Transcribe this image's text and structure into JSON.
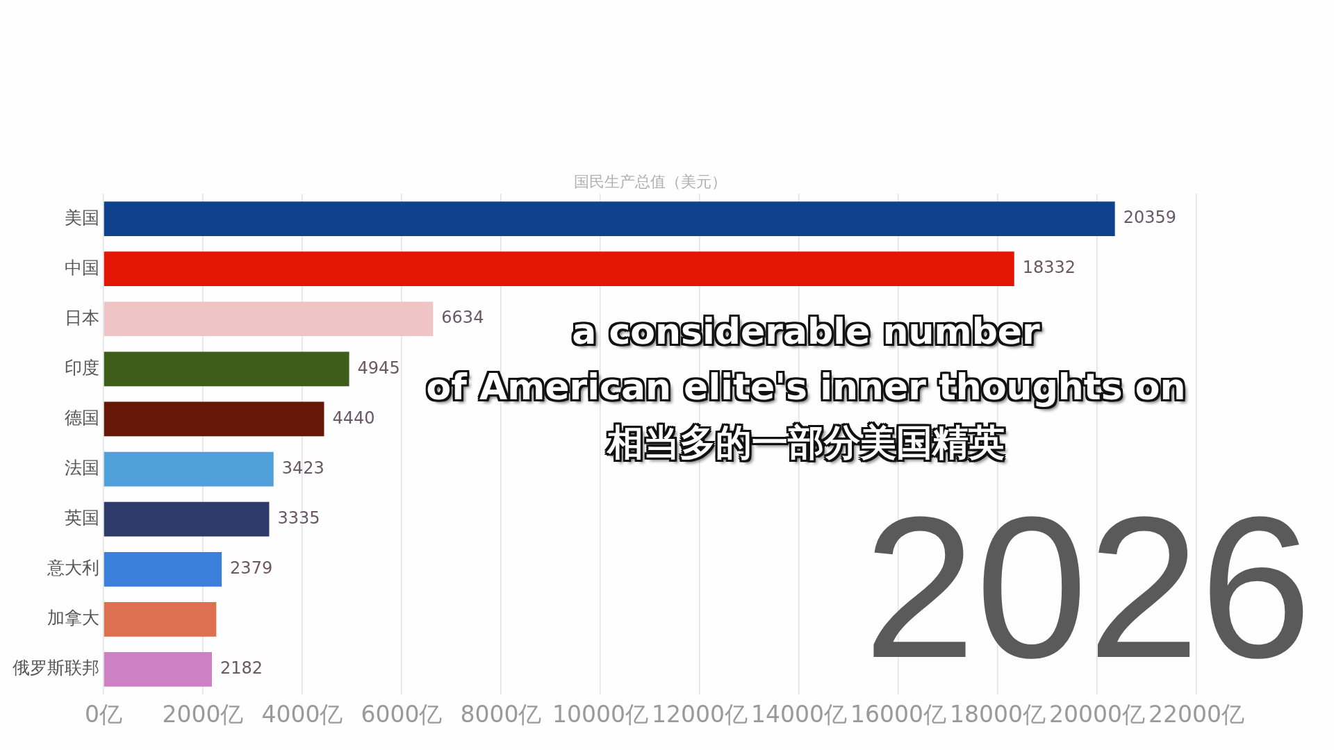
{
  "chart_data": {
    "type": "bar",
    "orientation": "horizontal",
    "title": "国民生产总值（美元）",
    "categories": [
      "美国",
      "中国",
      "日本",
      "印度",
      "德国",
      "法国",
      "英国",
      "意大利",
      "加拿大",
      "俄罗斯联邦"
    ],
    "values": [
      20359,
      18332,
      6634,
      4945,
      4440,
      3423,
      3335,
      2379,
      2270,
      2182
    ],
    "colors": [
      "#0f418c",
      "#e21602",
      "#eec4c4",
      "#3e5c1a",
      "#661808",
      "#50a0dc",
      "#2e3a6a",
      "#3a80da",
      "#dc7050",
      "#ce80c4"
    ],
    "value_labels": [
      "20359",
      "18332",
      "6634",
      "4945",
      "4440",
      "3423",
      "3335",
      "2379",
      null,
      "2182"
    ],
    "xlim": [
      0,
      22000
    ],
    "xticks": [
      {
        "value": 0,
        "label": "0亿"
      },
      {
        "value": 2000,
        "label": "2000亿"
      },
      {
        "value": 4000,
        "label": "4000亿"
      },
      {
        "value": 6000,
        "label": "6000亿"
      },
      {
        "value": 8000,
        "label": "8000亿"
      },
      {
        "value": 10000,
        "label": "10000亿"
      },
      {
        "value": 12000,
        "label": "12000亿"
      },
      {
        "value": 14000,
        "label": "14000亿"
      },
      {
        "value": 16000,
        "label": "16000亿"
      },
      {
        "value": 18000,
        "label": "18000亿"
      },
      {
        "value": 20000,
        "label": "20000亿"
      },
      {
        "value": 22000,
        "label": "22000亿"
      }
    ],
    "grid": "x",
    "annotations": [
      "2026",
      "a considerable number",
      "of American elite's inner thoughts on",
      "相当多的一部分美国精英"
    ]
  }
}
